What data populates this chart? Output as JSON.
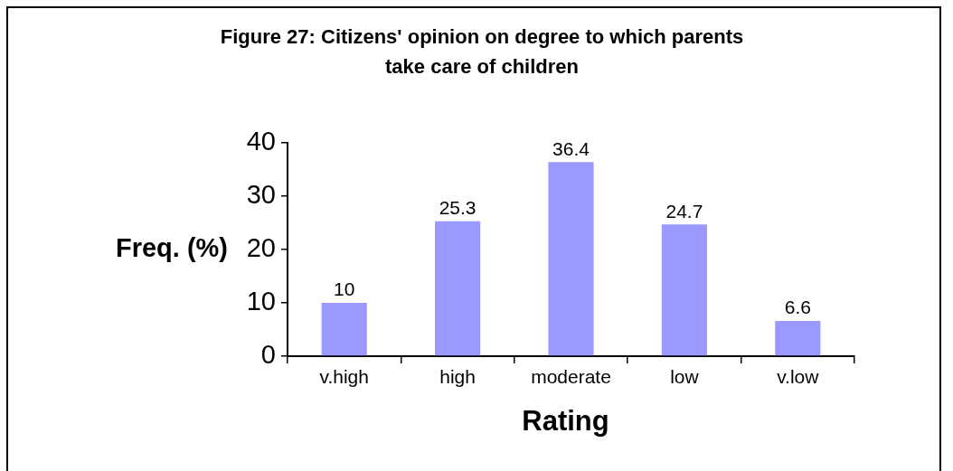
{
  "chart_data": {
    "type": "bar",
    "title": "Figure 27: Citizens' opinion on degree to which parents take care of children",
    "xlabel": "Rating",
    "ylabel": "Freq. (%)",
    "categories": [
      "v.high",
      "high",
      "moderate",
      "low",
      "v.low"
    ],
    "values": [
      10,
      25.3,
      36.4,
      24.7,
      6.6
    ],
    "color": "#9999ff",
    "ylim": [
      0,
      40
    ],
    "yticks": [
      0,
      10,
      20,
      30,
      40
    ],
    "data_labels": true
  }
}
